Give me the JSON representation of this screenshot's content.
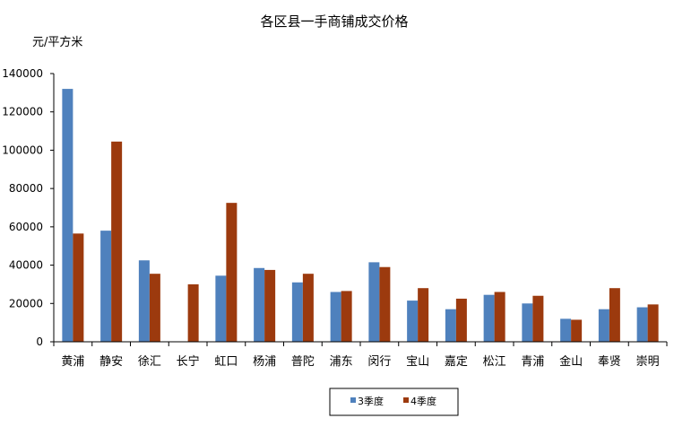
{
  "chart_data": {
    "type": "bar",
    "title": "各区县一手商铺成交价格",
    "ylabel": "元/平方米",
    "xlabel": "",
    "ylim": [
      0,
      140000
    ],
    "yticks": [
      0,
      20000,
      40000,
      60000,
      80000,
      100000,
      120000,
      140000
    ],
    "grid": false,
    "legend_position": "bottom",
    "categories": [
      "黄浦",
      "静安",
      "徐汇",
      "长宁",
      "虹口",
      "杨浦",
      "普陀",
      "浦东",
      "闵行",
      "宝山",
      "嘉定",
      "松江",
      "青浦",
      "金山",
      "奉贤",
      "崇明"
    ],
    "series": [
      {
        "name": "3季度",
        "color": "#4F81BD",
        "values": [
          132000,
          58000,
          42500,
          null,
          34500,
          38500,
          31000,
          26000,
          41500,
          21500,
          17000,
          24500,
          20000,
          12000,
          17000,
          18000
        ]
      },
      {
        "name": "4季度",
        "color": "#9C3A0E",
        "values": [
          56500,
          104500,
          35500,
          30000,
          72500,
          37500,
          35500,
          26500,
          39000,
          28000,
          22500,
          26000,
          24000,
          11500,
          28000,
          19500
        ]
      }
    ]
  }
}
